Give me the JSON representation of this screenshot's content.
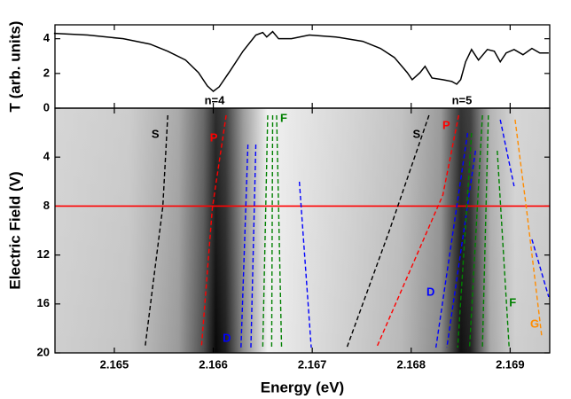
{
  "chart_data": [
    {
      "type": "line",
      "ylabel": "T (arb. units)",
      "x": [
        2.16439,
        2.16473,
        2.16509,
        2.16536,
        2.16554,
        2.16572,
        2.16585,
        2.16594,
        2.166,
        2.16606,
        2.16617,
        2.1663,
        2.16643,
        2.1665,
        2.16654,
        2.1666,
        2.16666,
        2.16679,
        2.16697,
        2.16724,
        2.16751,
        2.16769,
        2.16783,
        2.16796,
        2.16801,
        2.16809,
        2.16814,
        2.16821,
        2.16832,
        2.16841,
        2.16846,
        2.1685,
        2.16855,
        2.16861,
        2.16868,
        2.16877,
        2.16884,
        2.1689,
        2.16896,
        2.16904,
        2.16913,
        2.16922,
        2.1693,
        2.16939
      ],
      "series": [
        {
          "color": "#000000",
          "values": [
            4.31,
            4.21,
            4.0,
            3.69,
            3.28,
            2.77,
            2.05,
            1.28,
            0.97,
            1.23,
            2.15,
            3.28,
            4.21,
            4.36,
            4.1,
            4.41,
            4.0,
            4.0,
            4.21,
            4.1,
            3.85,
            3.44,
            2.92,
            2.05,
            1.64,
            2.05,
            2.41,
            1.74,
            1.64,
            1.54,
            1.38,
            1.64,
            2.67,
            3.38,
            2.77,
            3.38,
            3.28,
            2.67,
            3.18,
            3.38,
            3.08,
            3.44,
            3.18,
            3.18
          ]
        }
      ],
      "xlim": [
        2.1644,
        2.1694
      ],
      "xticks": [
        2.165,
        2.166,
        2.167,
        2.168,
        2.169
      ],
      "ylim": [
        0,
        4.8
      ],
      "yticks": [
        0,
        2,
        4
      ],
      "annotations": [
        "n=4",
        "n=5"
      ]
    },
    {
      "type": "line",
      "xlabel": "Energy (eV)",
      "ylabel": "Electric Field (V)",
      "xlim": [
        2.1644,
        2.1694
      ],
      "xticks": [
        2.165,
        2.166,
        2.167,
        2.168,
        2.169
      ],
      "ylim": [
        0,
        20
      ],
      "yticks": [
        4,
        8,
        12,
        16,
        20
      ],
      "y_inverted": true,
      "dashed": true,
      "hline": {
        "value": 8,
        "color": "#ff0000"
      },
      "series": [
        {
          "name": "S",
          "color": "#000000",
          "x": [
            2.16554,
            2.16549,
            2.16531
          ],
          "values": [
            0.58,
            8.04,
            19.57
          ]
        },
        {
          "name": "P",
          "color": "#ff0000",
          "x": [
            2.16613,
            2.16599,
            2.16588
          ],
          "values": [
            0.58,
            8.19,
            19.57
          ]
        },
        {
          "name": "D",
          "color": "#0000ff",
          "x": [
            2.16635,
            2.16628
          ],
          "values": [
            2.97,
            19.57
          ]
        },
        {
          "color": "#0000ff",
          "x": [
            2.16643,
            2.16638
          ],
          "values": [
            2.97,
            19.57
          ]
        },
        {
          "color": "#008000",
          "x": [
            2.16655,
            2.1665
          ],
          "values": [
            0.58,
            19.57
          ]
        },
        {
          "color": "#008000",
          "x": [
            2.1666,
            2.16659
          ],
          "values": [
            0.58,
            19.57
          ]
        },
        {
          "name": "F",
          "color": "#008000",
          "x": [
            2.16664,
            2.16669
          ],
          "values": [
            0.58,
            19.57
          ]
        },
        {
          "color": "#0000ff",
          "x": [
            2.16687,
            2.16699
          ],
          "values": [
            6.01,
            19.57
          ]
        },
        {
          "name": "S",
          "color": "#000000",
          "x": [
            2.16818,
            2.16778,
            2.16735
          ],
          "values": [
            0.58,
            10.0,
            19.57
          ]
        },
        {
          "name": "P",
          "color": "#ff0000",
          "x": [
            2.16848,
            2.16832,
            2.16765
          ],
          "values": [
            0.58,
            7.1,
            19.57
          ]
        },
        {
          "name": "D",
          "color": "#0000ff",
          "x": [
            2.16857,
            2.16825
          ],
          "values": [
            2.03,
            19.57
          ]
        },
        {
          "color": "#0000ff",
          "x": [
            2.16865,
            2.16836
          ],
          "values": [
            3.48,
            19.57
          ]
        },
        {
          "color": "#008000",
          "x": [
            2.16861,
            2.16847
          ],
          "values": [
            2.03,
            19.57
          ]
        },
        {
          "color": "#008000",
          "x": [
            2.16872,
            2.16859
          ],
          "values": [
            0.58,
            19.57
          ]
        },
        {
          "color": "#008000",
          "x": [
            2.16878,
            2.16872
          ],
          "values": [
            0.58,
            19.57
          ]
        },
        {
          "name": "F",
          "color": "#008000",
          "x": [
            2.16887,
            2.16899
          ],
          "values": [
            3.48,
            19.57
          ]
        },
        {
          "color": "#0000ff",
          "x": [
            2.1689,
            2.16904
          ],
          "values": [
            0.94,
            6.38
          ]
        },
        {
          "color": "#0000ff",
          "x": [
            2.16922,
            2.16939
          ],
          "values": [
            10.72,
            15.43
          ]
        },
        {
          "name": "G",
          "color": "#ff8c00",
          "x": [
            2.16905,
            2.16917,
            2.16932
          ],
          "values": [
            0.94,
            8.55,
            18.7
          ]
        }
      ]
    }
  ]
}
